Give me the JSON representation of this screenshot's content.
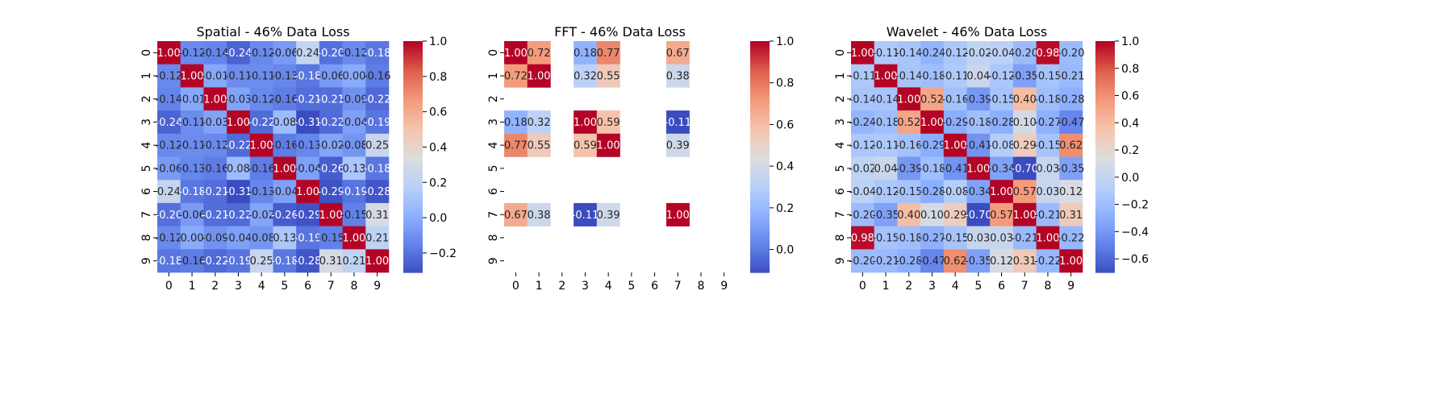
{
  "chart_data": [
    {
      "type": "heatmap",
      "title": "Spatial - 46% Data Loss",
      "x_categories": [
        "0",
        "1",
        "2",
        "3",
        "4",
        "5",
        "6",
        "7",
        "8",
        "9"
      ],
      "y_categories": [
        "0",
        "1",
        "2",
        "3",
        "4",
        "5",
        "6",
        "7",
        "8",
        "9"
      ],
      "values": [
        [
          1.0,
          -0.12,
          -0.14,
          -0.24,
          -0.12,
          -0.06,
          0.24,
          -0.2,
          -0.12,
          -0.18
        ],
        [
          -0.12,
          1.0,
          -0.01,
          -0.11,
          -0.11,
          -0.13,
          -0.18,
          -0.06,
          -0.0,
          -0.16
        ],
        [
          -0.14,
          -0.01,
          1.0,
          -0.03,
          -0.12,
          -0.16,
          -0.21,
          -0.21,
          -0.09,
          -0.22
        ],
        [
          -0.24,
          -0.11,
          -0.03,
          1.0,
          -0.22,
          0.08,
          -0.31,
          -0.22,
          -0.04,
          -0.19
        ],
        [
          -0.12,
          -0.11,
          -0.12,
          -0.22,
          1.0,
          -0.16,
          -0.13,
          -0.02,
          -0.08,
          0.25
        ],
        [
          -0.06,
          -0.13,
          -0.16,
          0.08,
          -0.16,
          1.0,
          -0.04,
          -0.26,
          0.13,
          -0.18
        ],
        [
          0.24,
          -0.18,
          -0.21,
          -0.31,
          -0.13,
          -0.04,
          1.0,
          -0.29,
          -0.19,
          -0.28
        ],
        [
          -0.2,
          -0.06,
          -0.21,
          -0.22,
          -0.02,
          -0.26,
          -0.29,
          1.0,
          -0.15,
          0.31
        ],
        [
          -0.12,
          -0.0,
          -0.09,
          -0.04,
          -0.08,
          0.13,
          -0.19,
          -0.15,
          1.0,
          0.21
        ],
        [
          -0.18,
          -0.16,
          -0.22,
          -0.19,
          0.25,
          -0.18,
          -0.28,
          0.31,
          0.21,
          1.0
        ]
      ],
      "vmin": -0.31,
      "vmax": 1.0,
      "colorbar_ticks": [
        -0.2,
        0.0,
        0.2,
        0.4,
        0.6,
        0.8,
        1.0
      ],
      "colorbar_tick_labels": [
        "−0.2",
        "0.0",
        "0.2",
        "0.4",
        "0.6",
        "0.8",
        "1.0"
      ],
      "colormap": "coolwarm"
    },
    {
      "type": "heatmap",
      "title": "FFT - 46% Data Loss",
      "x_categories": [
        "0",
        "1",
        "2",
        "3",
        "4",
        "5",
        "6",
        "7",
        "8",
        "9"
      ],
      "y_categories": [
        "0",
        "1",
        "2",
        "3",
        "4",
        "5",
        "6",
        "7",
        "8",
        "9"
      ],
      "values": [
        [
          1.0,
          0.72,
          null,
          0.18,
          0.77,
          null,
          null,
          0.67,
          null,
          null
        ],
        [
          0.72,
          1.0,
          null,
          0.32,
          0.55,
          null,
          null,
          0.38,
          null,
          null
        ],
        [
          null,
          null,
          null,
          null,
          null,
          null,
          null,
          null,
          null,
          null
        ],
        [
          0.18,
          0.32,
          null,
          1.0,
          0.59,
          null,
          null,
          -0.11,
          null,
          null
        ],
        [
          0.77,
          0.55,
          null,
          0.59,
          1.0,
          null,
          null,
          0.39,
          null,
          null
        ],
        [
          null,
          null,
          null,
          null,
          null,
          null,
          null,
          null,
          null,
          null
        ],
        [
          null,
          null,
          null,
          null,
          null,
          null,
          null,
          null,
          null,
          null
        ],
        [
          0.67,
          0.38,
          null,
          -0.11,
          0.39,
          null,
          null,
          1.0,
          null,
          null
        ],
        [
          null,
          null,
          null,
          null,
          null,
          null,
          null,
          null,
          null,
          null
        ],
        [
          null,
          null,
          null,
          null,
          null,
          null,
          null,
          null,
          null,
          null
        ]
      ],
      "vmin": -0.11,
      "vmax": 1.0,
      "colorbar_ticks": [
        0.0,
        0.2,
        0.4,
        0.6,
        0.8,
        1.0
      ],
      "colorbar_tick_labels": [
        "0.0",
        "0.2",
        "0.4",
        "0.6",
        "0.8",
        "1.0"
      ],
      "colormap": "coolwarm"
    },
    {
      "type": "heatmap",
      "title": "Wavelet - 46% Data Loss",
      "x_categories": [
        "0",
        "1",
        "2",
        "3",
        "4",
        "5",
        "6",
        "7",
        "8",
        "9"
      ],
      "y_categories": [
        "0",
        "1",
        "2",
        "3",
        "4",
        "5",
        "6",
        "7",
        "8",
        "9"
      ],
      "values": [
        [
          1.0,
          -0.11,
          -0.14,
          -0.24,
          -0.12,
          -0.02,
          -0.04,
          -0.2,
          0.98,
          -0.2
        ],
        [
          -0.11,
          1.0,
          -0.14,
          -0.18,
          -0.11,
          0.04,
          -0.12,
          -0.35,
          -0.15,
          -0.21
        ],
        [
          -0.14,
          -0.14,
          1.0,
          0.52,
          -0.16,
          -0.39,
          -0.15,
          0.4,
          -0.18,
          -0.28
        ],
        [
          -0.24,
          -0.18,
          0.52,
          1.0,
          -0.29,
          -0.18,
          -0.28,
          0.1,
          -0.27,
          -0.47
        ],
        [
          -0.12,
          -0.11,
          -0.16,
          -0.29,
          1.0,
          -0.41,
          -0.08,
          0.29,
          -0.15,
          0.62
        ],
        [
          -0.02,
          0.04,
          -0.39,
          -0.18,
          -0.41,
          1.0,
          -0.34,
          -0.7,
          0.03,
          -0.35
        ],
        [
          -0.04,
          -0.12,
          -0.15,
          -0.28,
          -0.08,
          -0.34,
          1.0,
          0.57,
          0.03,
          0.12
        ],
        [
          -0.2,
          -0.35,
          0.4,
          0.1,
          0.29,
          -0.7,
          0.57,
          1.0,
          -0.21,
          0.31
        ],
        [
          0.98,
          -0.15,
          -0.18,
          -0.27,
          -0.15,
          0.03,
          0.03,
          -0.21,
          1.0,
          -0.22
        ],
        [
          -0.2,
          -0.21,
          -0.28,
          -0.47,
          0.62,
          -0.35,
          0.12,
          0.31,
          -0.22,
          1.0
        ]
      ],
      "vmin": -0.7,
      "vmax": 1.0,
      "colorbar_ticks": [
        -0.6,
        -0.4,
        -0.2,
        0.0,
        0.2,
        0.4,
        0.6,
        0.8,
        1.0
      ],
      "colorbar_tick_labels": [
        "−0.6",
        "−0.4",
        "−0.2",
        "0.0",
        "0.2",
        "0.4",
        "0.6",
        "0.8",
        "1.0"
      ],
      "colormap": "coolwarm"
    }
  ]
}
